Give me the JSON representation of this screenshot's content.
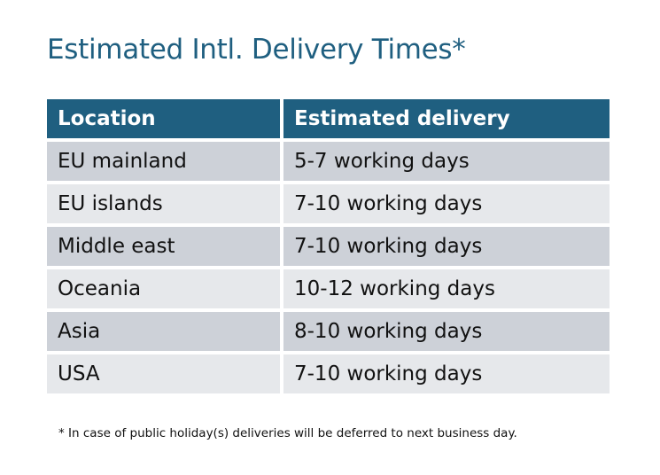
{
  "title": "Estimated Intl. Delivery Times*",
  "table": {
    "headers": [
      "Location",
      "Estimated delivery"
    ],
    "rows": [
      [
        "EU mainland",
        "5-7 working days"
      ],
      [
        "EU islands",
        "7-10 working days"
      ],
      [
        "Middle east",
        "7-10 working days"
      ],
      [
        "Oceania",
        "10-12 working days"
      ],
      [
        "Asia",
        "8-10 working days"
      ],
      [
        "USA",
        "7-10 working days"
      ]
    ]
  },
  "footnote": "* In case of public holiday(s) deliveries will be deferred to next business day.",
  "colors": {
    "header": "#1f5f80",
    "row_odd": "#cdd1d8",
    "row_even": "#e6e8eb",
    "title": "#1f5f80"
  }
}
